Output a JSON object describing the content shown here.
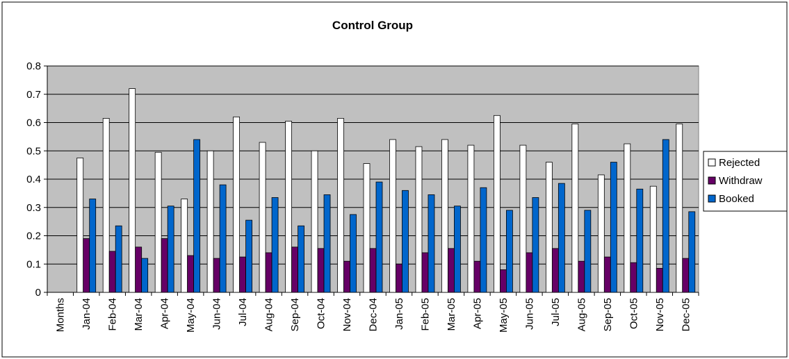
{
  "chart_data": {
    "type": "bar",
    "title": "Control Group",
    "categories": [
      "Months",
      "Jan-04",
      "Feb-04",
      "Mar-04",
      "Apr-04",
      "May-04",
      "Jun-04",
      "Jul-04",
      "Aug-04",
      "Sep-04",
      "Oct-04",
      "Nov-04",
      "Dec-04",
      "Jan-05",
      "Feb-05",
      "Mar-05",
      "Apr-05",
      "May-05",
      "Jun-05",
      "Jul-05",
      "Aug-05",
      "Sep-05",
      "Oct-05",
      "Nov-05",
      "Dec-05"
    ],
    "series": [
      {
        "name": "Rejected",
        "color": "#ffffff",
        "values": [
          null,
          0.475,
          0.615,
          0.72,
          0.495,
          0.33,
          0.5,
          0.62,
          0.53,
          0.605,
          0.5,
          0.615,
          0.455,
          0.54,
          0.515,
          0.54,
          0.52,
          0.625,
          0.52,
          0.46,
          0.595,
          0.415,
          0.525,
          0.375,
          0.595
        ]
      },
      {
        "name": "Withdraw",
        "color": "#660066",
        "values": [
          null,
          0.19,
          0.145,
          0.16,
          0.19,
          0.13,
          0.12,
          0.125,
          0.14,
          0.16,
          0.155,
          0.11,
          0.155,
          0.1,
          0.14,
          0.155,
          0.11,
          0.08,
          0.14,
          0.155,
          0.11,
          0.125,
          0.105,
          0.085,
          0.12
        ]
      },
      {
        "name": "Booked",
        "color": "#0066cc",
        "values": [
          null,
          0.33,
          0.235,
          0.12,
          0.305,
          0.54,
          0.38,
          0.255,
          0.335,
          0.235,
          0.345,
          0.275,
          0.39,
          0.36,
          0.345,
          0.305,
          0.37,
          0.29,
          0.335,
          0.385,
          0.29,
          0.46,
          0.365,
          0.54,
          0.285
        ]
      }
    ],
    "ylim": [
      0,
      0.8
    ],
    "yticks": [
      0,
      0.1,
      0.2,
      0.3,
      0.4,
      0.5,
      0.6,
      0.7,
      0.8
    ],
    "grid": true,
    "legend": "right"
  }
}
